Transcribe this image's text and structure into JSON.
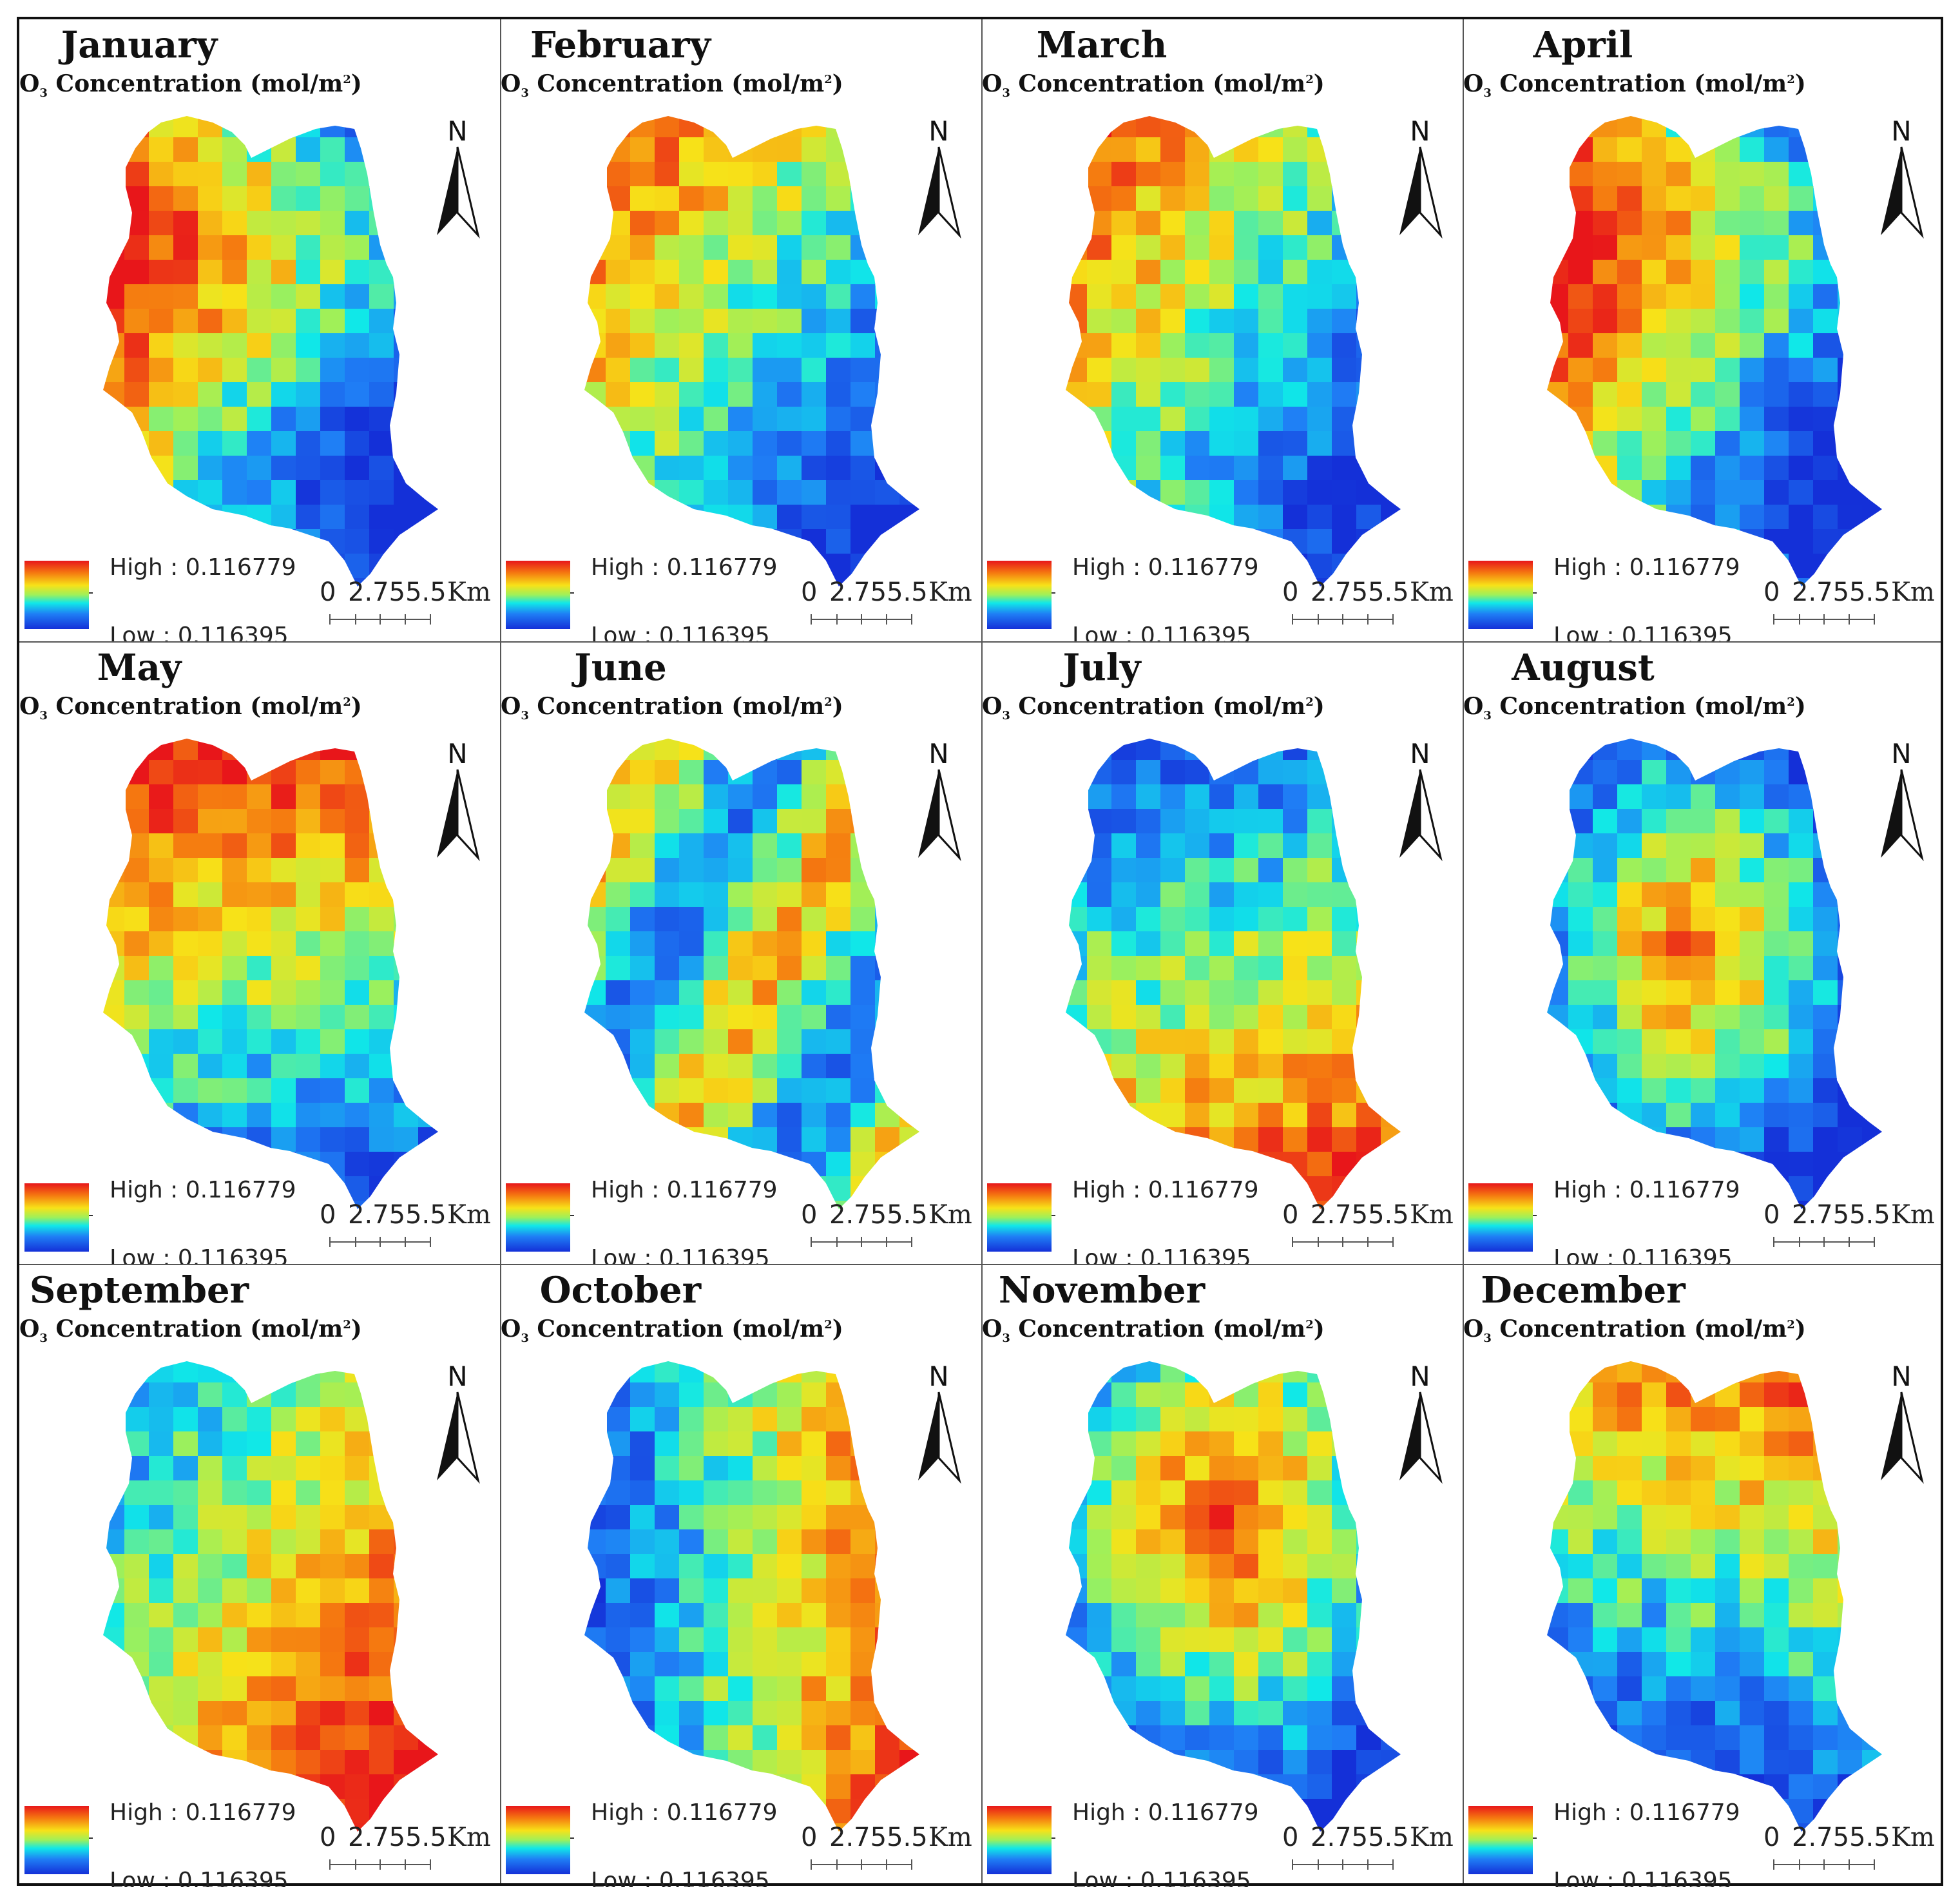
{
  "subtitle_prefix": "O",
  "subtitle_sub": "3",
  "subtitle_rest": " Concentration (mol/m",
  "subtitle_sup": "2",
  "subtitle_end": ")",
  "north_label": "N",
  "legend": {
    "high": "High : 0.116779",
    "low": "Low : 0.116395",
    "high_color": "#e8161a",
    "low_color": "#1430d8"
  },
  "scale": {
    "zero": "0",
    "values": "2.755.5",
    "unit": "Km"
  },
  "panels": [
    {
      "month": "January",
      "hot": "west"
    },
    {
      "month": "February",
      "hot": "northwest"
    },
    {
      "month": "March",
      "hot": "northwest"
    },
    {
      "month": "April",
      "hot": "west"
    },
    {
      "month": "May",
      "hot": "north"
    },
    {
      "month": "June",
      "hot": "mixed"
    },
    {
      "month": "July",
      "hot": "south"
    },
    {
      "month": "August",
      "hot": "center"
    },
    {
      "month": "September",
      "hot": "southeast"
    },
    {
      "month": "October",
      "hot": "east"
    },
    {
      "month": "November",
      "hot": "center-north"
    },
    {
      "month": "December",
      "hot": "north-edge"
    }
  ]
}
